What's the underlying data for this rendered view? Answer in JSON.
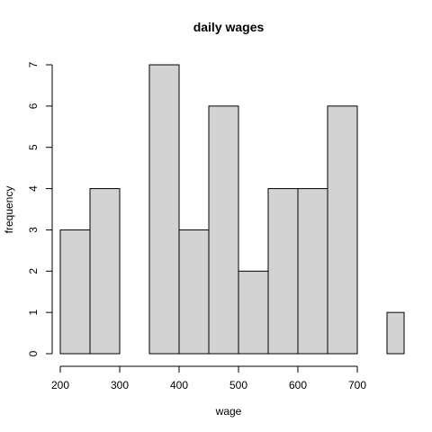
{
  "chart_data": {
    "type": "bar",
    "title": "daily wages",
    "xlabel": "wage",
    "ylabel": "frequency",
    "bins": [
      {
        "x0": 200,
        "x1": 250,
        "count": 3
      },
      {
        "x0": 250,
        "x1": 300,
        "count": 4
      },
      {
        "x0": 300,
        "x1": 350,
        "count": 0
      },
      {
        "x0": 350,
        "x1": 400,
        "count": 7
      },
      {
        "x0": 400,
        "x1": 450,
        "count": 3
      },
      {
        "x0": 450,
        "x1": 500,
        "count": 6
      },
      {
        "x0": 500,
        "x1": 550,
        "count": 2
      },
      {
        "x0": 550,
        "x1": 600,
        "count": 4
      },
      {
        "x0": 600,
        "x1": 650,
        "count": 4
      },
      {
        "x0": 650,
        "x1": 700,
        "count": 6
      },
      {
        "x0": 700,
        "x1": 750,
        "count": 0
      },
      {
        "x0": 750,
        "x1": 800,
        "count": 1
      }
    ],
    "xlim": [
      200,
      780
    ],
    "ylim": [
      0,
      7
    ],
    "xticks": [
      200,
      300,
      400,
      500,
      600,
      700
    ],
    "yticks": [
      0,
      1,
      2,
      3,
      4,
      5,
      6,
      7
    ],
    "bar_color": "#d3d3d3",
    "grid": false
  }
}
